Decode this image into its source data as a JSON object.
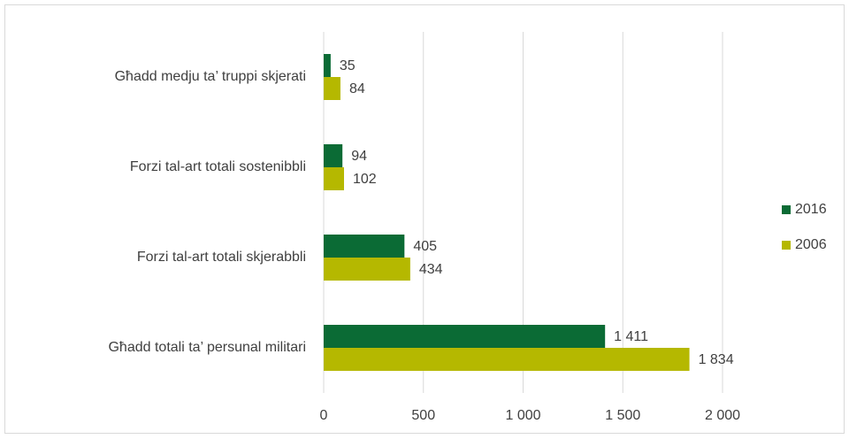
{
  "chart_data": {
    "type": "hbar",
    "categories": [
      "Għadd medju ta’ truppi skjerati",
      "Forzi tal-art totali sostenibbli",
      "Forzi tal-art totali skjerabbli",
      "Għadd totali ta’ persunal militari"
    ],
    "series": [
      {
        "name": "2016",
        "color": "#0b6b35",
        "values": [
          35,
          94,
          405,
          1411
        ],
        "value_labels": [
          "35",
          "94",
          "405",
          "1 411"
        ]
      },
      {
        "name": "2006",
        "color": "#b5b800",
        "values": [
          84,
          102,
          434,
          1834
        ],
        "value_labels": [
          "84",
          "102",
          "434",
          "1 834"
        ]
      }
    ],
    "xlim": [
      0,
      2000
    ],
    "xticks": [
      0,
      500,
      {
        "value": 1000,
        "label": "1 000"
      },
      {
        "value": 1500,
        "label": "1 500"
      },
      {
        "value": 2000,
        "label": "2 000"
      }
    ],
    "grid": true,
    "legend": "right"
  }
}
